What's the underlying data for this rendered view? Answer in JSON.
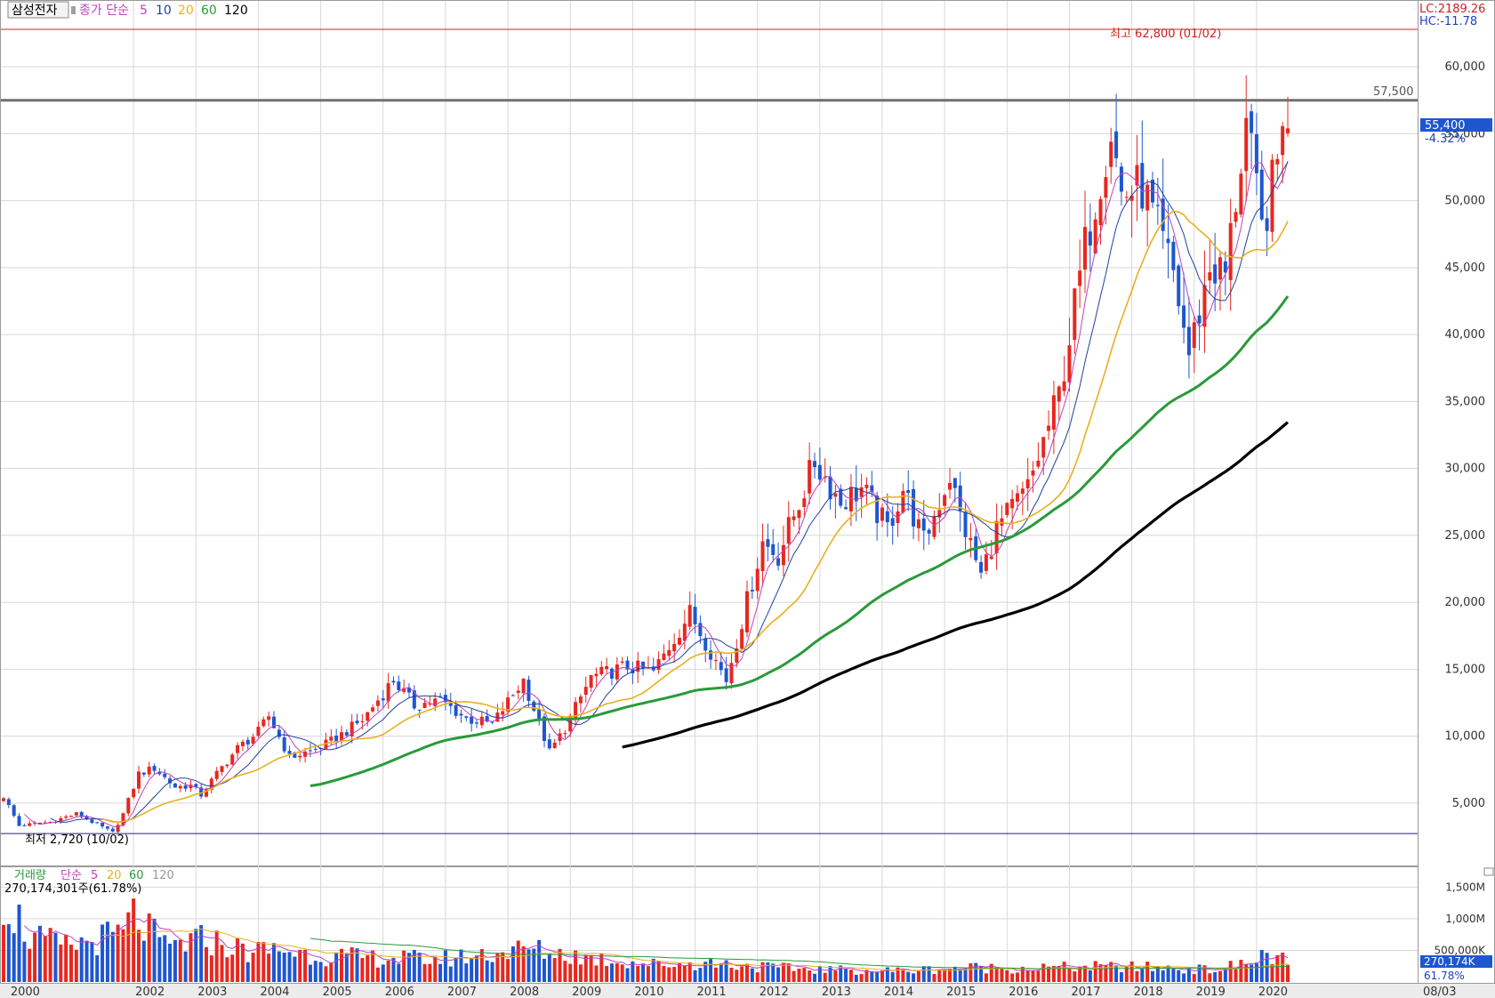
{
  "header": {
    "stock_name": "삼성전자",
    "indicator_label": "종가 단순",
    "ma_periods": [
      "5",
      "10",
      "20",
      "60",
      "120"
    ]
  },
  "readouts": {
    "lc": "LC:2189.26",
    "hc": "HC:-11.78",
    "price_tag": "55,400",
    "change_pct": "-4.32%",
    "ref_line_label": "57,500",
    "high_annotation": "최고 62,800 (01/02)",
    "low_annotation": "최저 2,720 (10/02)"
  },
  "volume_header": {
    "label": "거래량",
    "indicator_label": "단순",
    "ma_periods": [
      "5",
      "20",
      "60",
      "120"
    ],
    "last_volume_text": "270,174,301주(61.78%)"
  },
  "volume_readouts": {
    "tag": "270,174K",
    "pct": "61.78%"
  },
  "x_axis": {
    "year_labels": [
      "2000",
      "2002",
      "2003",
      "2004",
      "2005",
      "2006",
      "2007",
      "2008",
      "2009",
      "2010",
      "2011",
      "2012",
      "2013",
      "2014",
      "2015",
      "2016",
      "2017",
      "2018",
      "2019",
      "2020"
    ],
    "end_label": "08/03"
  },
  "colors": {
    "up": "#e8271f",
    "down": "#1e56d0",
    "ma5": "#c040c0",
    "ma10": "#2040a0",
    "ma20": "#e8b020",
    "ma60": "#2a9a3a",
    "ma120": "#000000",
    "high_line": "#d02020",
    "low_line": "#202080",
    "ref_line": "#707070",
    "grid": "#d8d8d8"
  },
  "chart_data": [
    {
      "type": "candlestick",
      "title": "삼성전자",
      "period": "monthly",
      "y_ticks": [
        "5,000",
        "10,000",
        "15,000",
        "20,000",
        "25,000",
        "30,000",
        "35,000",
        "40,000",
        "45,000",
        "50,000",
        "55,000",
        "60,000"
      ],
      "ylim": [
        1800,
        63000
      ],
      "high_marker": 62800,
      "low_marker": 2720,
      "reference_line": 57500,
      "last_close": 55400,
      "last_change_pct": -4.32,
      "anchors": [
        [
          "2000-01",
          5500
        ],
        [
          "2000-04",
          3300
        ],
        [
          "2000-10",
          3600
        ],
        [
          "2001-03",
          4200
        ],
        [
          "2001-10",
          2800
        ],
        [
          "2001-12",
          4200
        ],
        [
          "2002-03",
          7200
        ],
        [
          "2002-06",
          7600
        ],
        [
          "2002-10",
          6200
        ],
        [
          "2003-01",
          6300
        ],
        [
          "2003-03",
          5600
        ],
        [
          "2003-06",
          7200
        ],
        [
          "2003-10",
          9100
        ],
        [
          "2004-02",
          10300
        ],
        [
          "2004-04",
          11500
        ],
        [
          "2004-08",
          8400
        ],
        [
          "2005-01",
          9000
        ],
        [
          "2005-04",
          9600
        ],
        [
          "2005-10",
          11200
        ],
        [
          "2006-04",
          14200
        ],
        [
          "2006-08",
          12300
        ],
        [
          "2007-01",
          12700
        ],
        [
          "2007-06",
          11300
        ],
        [
          "2007-11",
          10900
        ],
        [
          "2008-05",
          14200
        ],
        [
          "2008-10",
          8800
        ],
        [
          "2009-01",
          10600
        ],
        [
          "2009-06",
          14400
        ],
        [
          "2010-01",
          15200
        ],
        [
          "2010-06",
          14800
        ],
        [
          "2011-01",
          19200
        ],
        [
          "2011-08",
          14200
        ],
        [
          "2012-03",
          24500
        ],
        [
          "2012-06",
          23500
        ],
        [
          "2012-10",
          27500
        ],
        [
          "2013-01",
          30500
        ],
        [
          "2013-06",
          27500
        ],
        [
          "2013-10",
          28500
        ],
        [
          "2014-03",
          25500
        ],
        [
          "2014-06",
          28500
        ],
        [
          "2014-10",
          24500
        ],
        [
          "2015-03",
          29500
        ],
        [
          "2015-05",
          26500
        ],
        [
          "2015-09",
          22000
        ],
        [
          "2015-12",
          25500
        ],
        [
          "2016-06",
          28500
        ],
        [
          "2016-12",
          35500
        ],
        [
          "2017-05",
          46500
        ],
        [
          "2017-10",
          55500
        ],
        [
          "2017-12",
          50500
        ],
        [
          "2018-04",
          51000
        ],
        [
          "2018-10",
          44500
        ],
        [
          "2019-01",
          38500
        ],
        [
          "2019-05",
          45000
        ],
        [
          "2019-08",
          44500
        ],
        [
          "2019-12",
          55800
        ],
        [
          "2020-03",
          47700
        ],
        [
          "2020-06",
          52800
        ],
        [
          "2020-07",
          57000
        ],
        [
          "2020-08",
          55400
        ]
      ],
      "moving_averages": [
        {
          "period": 5,
          "color": "#c040c0"
        },
        {
          "period": 10,
          "color": "#2040a0"
        },
        {
          "period": 20,
          "color": "#e8b020"
        },
        {
          "period": 60,
          "color": "#2a9a3a"
        },
        {
          "period": 120,
          "color": "#000000"
        }
      ]
    },
    {
      "type": "bar",
      "title": "거래량",
      "y_ticks": [
        "500,000K",
        "1,000M",
        "1,500M"
      ],
      "ylim": [
        0,
        1800
      ],
      "unit": "M shares",
      "last_value": 270.174,
      "anchors": [
        [
          "2000-01",
          1400
        ],
        [
          "2000-06",
          700
        ],
        [
          "2001-01",
          560
        ],
        [
          "2001-12",
          760
        ],
        [
          "2002-02",
          1050
        ],
        [
          "2002-08",
          550
        ],
        [
          "2003-04",
          680
        ],
        [
          "2003-12",
          480
        ],
        [
          "2004-06",
          520
        ],
        [
          "2005-01",
          420
        ],
        [
          "2005-12",
          380
        ],
        [
          "2007-01",
          360
        ],
        [
          "2008-06",
          520
        ],
        [
          "2009-06",
          380
        ],
        [
          "2010-06",
          280
        ],
        [
          "2011-06",
          300
        ],
        [
          "2012-06",
          220
        ],
        [
          "2013-06",
          190
        ],
        [
          "2014-06",
          180
        ],
        [
          "2015-06",
          230
        ],
        [
          "2016-06",
          220
        ],
        [
          "2017-06",
          240
        ],
        [
          "2018-06",
          230
        ],
        [
          "2019-06",
          190
        ],
        [
          "2019-12",
          300
        ],
        [
          "2020-01",
          300
        ],
        [
          "2020-03",
          420
        ],
        [
          "2020-06",
          420
        ],
        [
          "2020-08",
          270
        ]
      ]
    }
  ]
}
